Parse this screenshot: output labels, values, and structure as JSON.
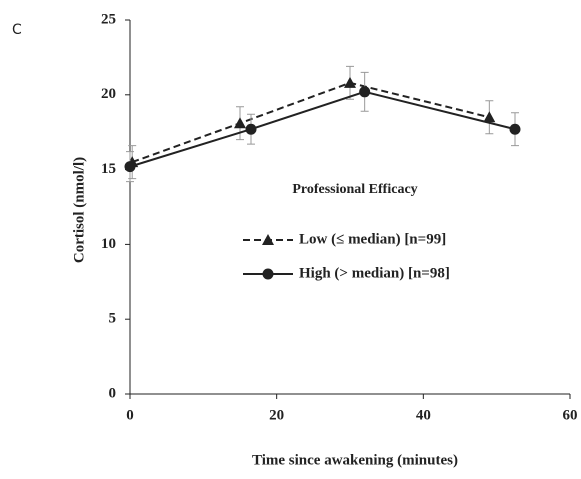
{
  "chart_data": {
    "type": "line",
    "panel_label": "C",
    "xlabel": "Time since awakening (minutes)",
    "ylabel": "Cortisol (nmol/l)",
    "legend_title": "Professional Efficacy",
    "xlim": [
      0,
      60
    ],
    "xticks": [
      0,
      20,
      40,
      60
    ],
    "ylim": [
      0,
      25
    ],
    "yticks": [
      0,
      5,
      10,
      15,
      20,
      25
    ],
    "series": [
      {
        "name": "Low (≤ median) [n=99]",
        "color": "#222222",
        "dash": true,
        "marker": "triangle",
        "x": [
          0.3,
          15,
          30,
          49
        ],
        "values": [
          15.5,
          18.1,
          20.8,
          18.5
        ],
        "errors": [
          1.1,
          1.1,
          1.1,
          1.1
        ]
      },
      {
        "name": "High (> median) [n=98]",
        "color": "#222222",
        "dash": false,
        "marker": "circle",
        "x": [
          0,
          16.5,
          32,
          52.5
        ],
        "values": [
          15.2,
          17.7,
          20.2,
          17.7
        ],
        "errors": [
          1.0,
          1.0,
          1.3,
          1.1
        ]
      }
    ]
  }
}
